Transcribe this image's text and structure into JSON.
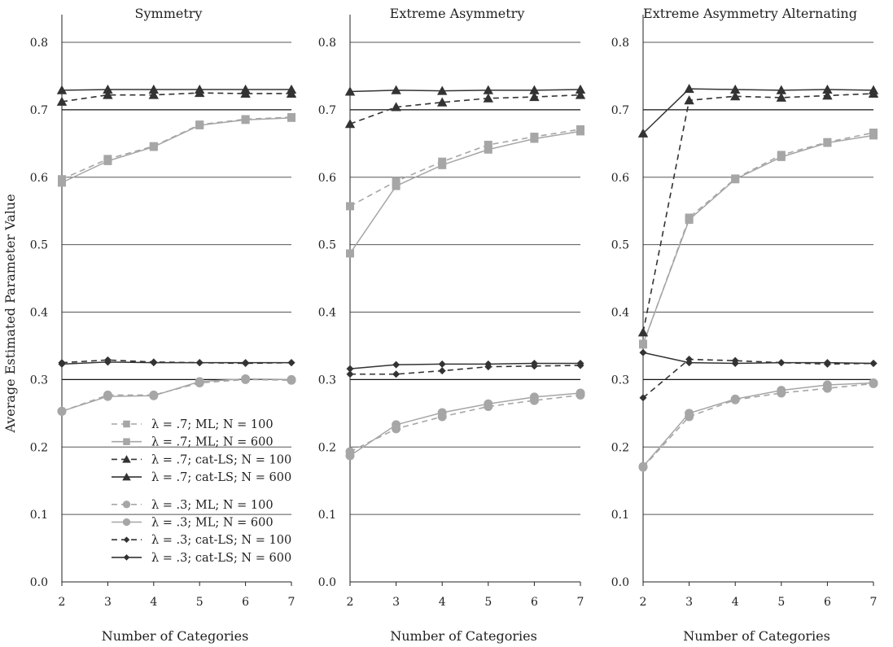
{
  "figure": {
    "ylabel": "Average Estimated Parameter Value",
    "xlabel": "Number of Categories"
  },
  "legend": [
    {
      "label": "λ = .7; ML; N = 100",
      "series": 0
    },
    {
      "label": "λ = .7; ML; N = 600",
      "series": 1
    },
    {
      "label": "λ = .7; cat-LS; N = 100",
      "series": 2
    },
    {
      "label": "λ = .7; cat-LS; N = 600",
      "series": 3
    },
    {
      "label": "λ = .3; ML; N = 100",
      "series": 4
    },
    {
      "label": "λ = .3; ML; N = 600",
      "series": 5
    },
    {
      "label": "λ = .3; cat-LS; N = 100",
      "series": 6
    },
    {
      "label": "λ = .3; cat-LS; N = 600",
      "series": 7
    }
  ],
  "series_style": [
    {
      "color": "#a6a6a6",
      "dash": true,
      "marker": "square"
    },
    {
      "color": "#a6a6a6",
      "dash": false,
      "marker": "square"
    },
    {
      "color": "#333333",
      "dash": true,
      "marker": "triangle"
    },
    {
      "color": "#333333",
      "dash": false,
      "marker": "triangle"
    },
    {
      "color": "#a6a6a6",
      "dash": true,
      "marker": "circle"
    },
    {
      "color": "#a6a6a6",
      "dash": false,
      "marker": "circle"
    },
    {
      "color": "#333333",
      "dash": true,
      "marker": "diamond"
    },
    {
      "color": "#333333",
      "dash": false,
      "marker": "diamond"
    }
  ],
  "chart_data": [
    {
      "type": "line",
      "title": "Symmetry",
      "xlabel": "Number of Categories",
      "ylabel": "Average Estimated Parameter Value",
      "x": [
        2,
        3,
        4,
        5,
        6,
        7
      ],
      "xlim": [
        2,
        7
      ],
      "ylim": [
        0,
        0.8
      ],
      "yticks": [
        "0.0",
        "0.1",
        "0.2",
        "0.3",
        "0.4",
        "0.5",
        "0.6",
        "0.7",
        "0.8"
      ],
      "xticks": [
        "2",
        "3",
        "4",
        "5",
        "6",
        "7"
      ],
      "grid": "horizontal",
      "legend": "bottom-left",
      "series": [
        {
          "name": "λ = .7; ML; N = 100",
          "values": [
            0.597,
            0.627,
            0.646,
            0.678,
            0.686,
            0.689
          ]
        },
        {
          "name": "λ = .7; ML; N = 600",
          "values": [
            0.592,
            0.624,
            0.645,
            0.677,
            0.685,
            0.688
          ]
        },
        {
          "name": "λ = .7; cat-LS; N = 100",
          "values": [
            0.712,
            0.722,
            0.722,
            0.725,
            0.724,
            0.724
          ]
        },
        {
          "name": "λ = .7; cat-LS; N = 600",
          "values": [
            0.729,
            0.73,
            0.73,
            0.73,
            0.73,
            0.73
          ]
        },
        {
          "name": "λ = .3; ML; N = 100",
          "values": [
            0.253,
            0.277,
            0.277,
            0.295,
            0.3,
            0.299
          ]
        },
        {
          "name": "λ = .3; ML; N = 600",
          "values": [
            0.253,
            0.275,
            0.276,
            0.297,
            0.301,
            0.3
          ]
        },
        {
          "name": "λ = .3; cat-LS; N = 100",
          "values": [
            0.325,
            0.329,
            0.326,
            0.325,
            0.324,
            0.325
          ]
        },
        {
          "name": "λ = .3; cat-LS; N = 600",
          "values": [
            0.323,
            0.326,
            0.325,
            0.325,
            0.325,
            0.325
          ]
        }
      ]
    },
    {
      "type": "line",
      "title": "Extreme Asymmetry",
      "xlabel": "Number of Categories",
      "x": [
        2,
        3,
        4,
        5,
        6,
        7
      ],
      "xlim": [
        2,
        7
      ],
      "ylim": [
        0,
        0.8
      ],
      "yticks": [
        "0.0",
        "0.1",
        "0.2",
        "0.3",
        "0.4",
        "0.5",
        "0.6",
        "0.7",
        "0.8"
      ],
      "xticks": [
        "2",
        "3",
        "4",
        "5",
        "6",
        "7"
      ],
      "grid": "horizontal",
      "series": [
        {
          "name": "λ = .7; ML; N = 100",
          "values": [
            0.557,
            0.594,
            0.623,
            0.648,
            0.66,
            0.671
          ]
        },
        {
          "name": "λ = .7; ML; N = 600",
          "values": [
            0.487,
            0.587,
            0.618,
            0.641,
            0.657,
            0.668
          ]
        },
        {
          "name": "λ = .7; cat-LS; N = 100",
          "values": [
            0.679,
            0.704,
            0.711,
            0.717,
            0.719,
            0.722
          ]
        },
        {
          "name": "λ = .7; cat-LS; N = 600",
          "values": [
            0.727,
            0.729,
            0.728,
            0.729,
            0.729,
            0.73
          ]
        },
        {
          "name": "λ = .3; ML; N = 100",
          "values": [
            0.193,
            0.227,
            0.245,
            0.26,
            0.269,
            0.277
          ]
        },
        {
          "name": "λ = .3; ML; N = 600",
          "values": [
            0.187,
            0.233,
            0.251,
            0.264,
            0.274,
            0.28
          ]
        },
        {
          "name": "λ = .3; cat-LS; N = 100",
          "values": [
            0.308,
            0.308,
            0.313,
            0.319,
            0.32,
            0.321
          ]
        },
        {
          "name": "λ = .3; cat-LS; N = 600",
          "values": [
            0.316,
            0.322,
            0.323,
            0.323,
            0.324,
            0.324
          ]
        }
      ]
    },
    {
      "type": "line",
      "title": "Extreme Asymmetry Alternating",
      "xlabel": "Number of Categories",
      "x": [
        2,
        3,
        4,
        5,
        6,
        7
      ],
      "xlim": [
        2,
        7
      ],
      "ylim": [
        0,
        0.8
      ],
      "yticks": [
        "0.0",
        "0.1",
        "0.2",
        "0.3",
        "0.4",
        "0.5",
        "0.6",
        "0.7",
        "0.8"
      ],
      "xticks": [
        "2",
        "3",
        "4",
        "5",
        "6",
        "7"
      ],
      "grid": "horizontal",
      "series": [
        {
          "name": "λ = .7; ML; N = 100",
          "values": [
            0.352,
            0.54,
            0.598,
            0.633,
            0.652,
            0.666
          ]
        },
        {
          "name": "λ = .7; ML; N = 600",
          "values": [
            0.353,
            0.537,
            0.597,
            0.63,
            0.651,
            0.662
          ]
        },
        {
          "name": "λ = .7; cat-LS; N = 100",
          "values": [
            0.37,
            0.714,
            0.72,
            0.718,
            0.721,
            0.724
          ]
        },
        {
          "name": "λ = .7; cat-LS; N = 600",
          "values": [
            0.665,
            0.731,
            0.73,
            0.729,
            0.73,
            0.729
          ]
        },
        {
          "name": "λ = .3; ML; N = 100",
          "values": [
            0.17,
            0.245,
            0.27,
            0.28,
            0.287,
            0.294
          ]
        },
        {
          "name": "λ = .3; ML; N = 600",
          "values": [
            0.171,
            0.25,
            0.271,
            0.284,
            0.292,
            0.295
          ]
        },
        {
          "name": "λ = .3; cat-LS; N = 100",
          "values": [
            0.273,
            0.33,
            0.328,
            0.325,
            0.323,
            0.324
          ]
        },
        {
          "name": "λ = .3; cat-LS; N = 600",
          "values": [
            0.34,
            0.325,
            0.324,
            0.325,
            0.325,
            0.324
          ]
        }
      ]
    }
  ]
}
